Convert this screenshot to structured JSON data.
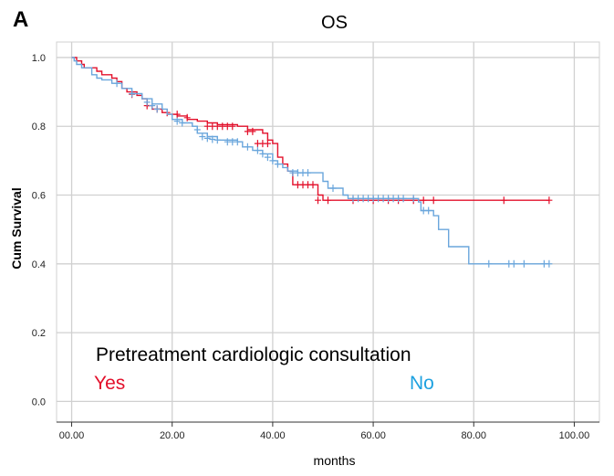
{
  "panel_label": "A",
  "chart_data": {
    "type": "line",
    "subtype": "kaplan-meier",
    "title": "OS",
    "xlabel": "months",
    "ylabel": "Cum Survival",
    "xlim": [
      -3,
      105
    ],
    "ylim": [
      -0.06,
      1.045
    ],
    "x_ticks": [
      0,
      20,
      40,
      60,
      80,
      100
    ],
    "x_tick_labels": [
      "00.00",
      "20.00",
      "40.00",
      "60.00",
      "80.00",
      "100.00"
    ],
    "y_ticks": [
      0.0,
      0.2,
      0.4,
      0.6,
      0.8,
      1.0
    ],
    "y_tick_labels": [
      "0.0",
      "0.2",
      "0.4",
      "0.6",
      "0.8",
      "1.0"
    ],
    "grid": true,
    "legend": {
      "title": "Pretreatment cardiologic consultation",
      "position": "bottom-left"
    },
    "series": [
      {
        "name": "Yes",
        "color": "#e3102b",
        "steps": [
          [
            0,
            1.0
          ],
          [
            1,
            0.99
          ],
          [
            2,
            0.98
          ],
          [
            2.5,
            0.97
          ],
          [
            5,
            0.96
          ],
          [
            6,
            0.95
          ],
          [
            8,
            0.94
          ],
          [
            9,
            0.93
          ],
          [
            10,
            0.91
          ],
          [
            11,
            0.9
          ],
          [
            13,
            0.89
          ],
          [
            14,
            0.88
          ],
          [
            15,
            0.86
          ],
          [
            16,
            0.85
          ],
          [
            18,
            0.84
          ],
          [
            19,
            0.835
          ],
          [
            21,
            0.83
          ],
          [
            23,
            0.82
          ],
          [
            25,
            0.815
          ],
          [
            27,
            0.81
          ],
          [
            29,
            0.805
          ],
          [
            33,
            0.8
          ],
          [
            35,
            0.79
          ],
          [
            38,
            0.78
          ],
          [
            39,
            0.76
          ],
          [
            40,
            0.75
          ],
          [
            41,
            0.71
          ],
          [
            42,
            0.69
          ],
          [
            43,
            0.67
          ],
          [
            44,
            0.63
          ],
          [
            49,
            0.6
          ],
          [
            50,
            0.585
          ]
        ],
        "end_x": 95,
        "censored": [
          [
            12,
            0.893
          ],
          [
            15,
            0.86
          ],
          [
            17,
            0.85
          ],
          [
            19,
            0.84
          ],
          [
            21,
            0.835
          ],
          [
            23,
            0.825
          ],
          [
            27,
            0.8
          ],
          [
            28,
            0.8
          ],
          [
            29,
            0.8
          ],
          [
            30,
            0.8
          ],
          [
            31,
            0.8
          ],
          [
            32,
            0.8
          ],
          [
            35,
            0.785
          ],
          [
            36,
            0.785
          ],
          [
            37,
            0.75
          ],
          [
            38,
            0.75
          ],
          [
            39,
            0.75
          ],
          [
            45,
            0.63
          ],
          [
            46,
            0.63
          ],
          [
            47,
            0.63
          ],
          [
            48,
            0.63
          ],
          [
            49,
            0.585
          ],
          [
            51,
            0.585
          ],
          [
            56,
            0.585
          ],
          [
            60,
            0.585
          ],
          [
            63,
            0.585
          ],
          [
            65,
            0.585
          ],
          [
            68,
            0.585
          ],
          [
            70,
            0.585
          ],
          [
            72,
            0.585
          ],
          [
            86,
            0.585
          ],
          [
            95,
            0.585
          ]
        ]
      },
      {
        "name": "No",
        "color": "#6aa6dc",
        "steps": [
          [
            0,
            1.0
          ],
          [
            0.5,
            0.99
          ],
          [
            1,
            0.98
          ],
          [
            2,
            0.97
          ],
          [
            4,
            0.95
          ],
          [
            5,
            0.94
          ],
          [
            6,
            0.935
          ],
          [
            8,
            0.925
          ],
          [
            10,
            0.91
          ],
          [
            12,
            0.895
          ],
          [
            14,
            0.88
          ],
          [
            16,
            0.865
          ],
          [
            18,
            0.85
          ],
          [
            19,
            0.835
          ],
          [
            20,
            0.82
          ],
          [
            22,
            0.81
          ],
          [
            24,
            0.8
          ],
          [
            25,
            0.78
          ],
          [
            27,
            0.77
          ],
          [
            29,
            0.76
          ],
          [
            33,
            0.755
          ],
          [
            34,
            0.74
          ],
          [
            36,
            0.73
          ],
          [
            38,
            0.72
          ],
          [
            40,
            0.7
          ],
          [
            41,
            0.69
          ],
          [
            42,
            0.68
          ],
          [
            43,
            0.67
          ],
          [
            45,
            0.665
          ],
          [
            50,
            0.64
          ],
          [
            51,
            0.62
          ],
          [
            54,
            0.6
          ],
          [
            55,
            0.59
          ],
          [
            69,
            0.58
          ],
          [
            69.5,
            0.555
          ],
          [
            72,
            0.54
          ],
          [
            73,
            0.5
          ],
          [
            75,
            0.45
          ],
          [
            79,
            0.4
          ]
        ],
        "end_x": 95,
        "censored": [
          [
            9,
            0.925
          ],
          [
            12,
            0.895
          ],
          [
            15,
            0.87
          ],
          [
            16,
            0.86
          ],
          [
            17,
            0.85
          ],
          [
            21,
            0.815
          ],
          [
            22,
            0.81
          ],
          [
            25,
            0.79
          ],
          [
            26,
            0.77
          ],
          [
            27,
            0.765
          ],
          [
            28,
            0.762
          ],
          [
            29,
            0.76
          ],
          [
            31,
            0.755
          ],
          [
            32,
            0.755
          ],
          [
            33,
            0.755
          ],
          [
            35,
            0.74
          ],
          [
            37,
            0.73
          ],
          [
            38,
            0.72
          ],
          [
            39,
            0.71
          ],
          [
            40,
            0.7
          ],
          [
            41,
            0.69
          ],
          [
            44,
            0.665
          ],
          [
            45,
            0.665
          ],
          [
            46,
            0.665
          ],
          [
            47,
            0.665
          ],
          [
            52,
            0.62
          ],
          [
            56,
            0.59
          ],
          [
            57,
            0.59
          ],
          [
            58,
            0.59
          ],
          [
            59,
            0.59
          ],
          [
            60,
            0.59
          ],
          [
            61,
            0.59
          ],
          [
            62,
            0.59
          ],
          [
            63,
            0.59
          ],
          [
            64,
            0.59
          ],
          [
            65,
            0.59
          ],
          [
            66,
            0.59
          ],
          [
            68,
            0.59
          ],
          [
            70,
            0.555
          ],
          [
            71,
            0.555
          ],
          [
            83,
            0.4
          ],
          [
            87,
            0.4
          ],
          [
            88,
            0.4
          ],
          [
            90,
            0.4
          ],
          [
            94,
            0.4
          ],
          [
            95,
            0.4
          ]
        ]
      }
    ]
  }
}
